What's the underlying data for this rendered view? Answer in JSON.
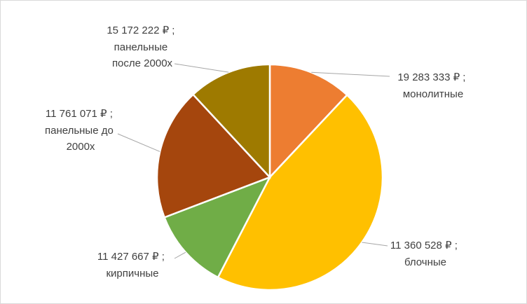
{
  "chart_data": {
    "type": "pie",
    "start_angle_deg": 0,
    "direction": "clockwise",
    "slices": [
      {
        "name": "монолитные",
        "value_label": "19 283 333 ₽ ;",
        "category_label": "монолитные",
        "share": 0.12,
        "color": "#ED7D31"
      },
      {
        "name": "блочные",
        "value_label": "11 360 528 ₽ ;",
        "category_label": "блочные",
        "share": 0.456,
        "color": "#FFC000"
      },
      {
        "name": "кирпичные",
        "value_label": "11 427 667 ₽ ;",
        "category_label": "кирпичные",
        "share": 0.116,
        "color": "#70AD47"
      },
      {
        "name": "панельные до 2000х",
        "value_label": "11 761 071 ₽ ;",
        "category_label": "панельные до\n2000х",
        "share": 0.189,
        "color": "#A5460D"
      },
      {
        "name": "панельные после 2000х",
        "value_label": "15 172 222 ₽ ;",
        "category_label": "панельные\nпосле 2000х",
        "share": 0.119,
        "color": "#9E7A00"
      }
    ],
    "legend": "none"
  }
}
